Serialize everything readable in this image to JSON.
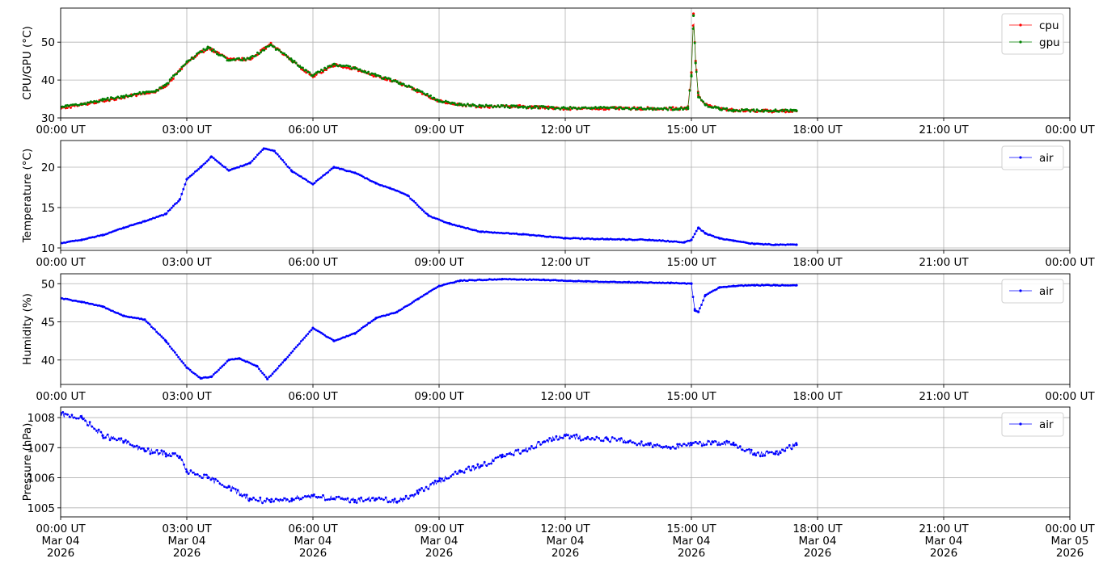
{
  "chart_data": [
    {
      "type": "line",
      "ylabel": "CPU/GPU (°C)",
      "xlabel": "",
      "xlim": [
        "2026-03-04 00:00",
        "2026-03-05 00:00"
      ],
      "ylim": [
        30,
        59
      ],
      "xticks": [
        "00:00 UT",
        "03:00 UT",
        "06:00 UT",
        "09:00 UT",
        "12:00 UT",
        "15:00 UT",
        "18:00 UT",
        "21:00 UT",
        "00:00 UT"
      ],
      "yticks": [
        "30",
        "40",
        "50"
      ],
      "grid": true,
      "legend": "top-right",
      "series": [
        {
          "name": "cpu",
          "color": "#ff0000",
          "x": [
            "00:00",
            "00:30",
            "01:00",
            "01:30",
            "02:00",
            "02:15",
            "02:30",
            "03:00",
            "03:30",
            "04:00",
            "04:30",
            "05:00",
            "05:30",
            "06:00",
            "06:30",
            "07:00",
            "07:30",
            "08:00",
            "08:30",
            "09:00",
            "09:30",
            "10:00",
            "11:00",
            "12:00",
            "13:00",
            "14:00",
            "14:55",
            "15:00",
            "15:03",
            "15:06",
            "15:10",
            "15:20",
            "15:40",
            "16:00",
            "17:00",
            "17:30"
          ],
          "values": [
            32.5,
            33.5,
            34.5,
            35.5,
            36.5,
            36.8,
            38.5,
            44.5,
            48.5,
            45.5,
            45.5,
            49.5,
            45.0,
            41.0,
            44.0,
            43.0,
            41.0,
            39.5,
            37.0,
            34.5,
            33.5,
            33.0,
            33.0,
            32.5,
            32.5,
            32.5,
            32.5,
            42.0,
            57.5,
            45.0,
            36.0,
            33.5,
            32.5,
            32.0,
            31.8,
            31.8
          ]
        },
        {
          "name": "gpu",
          "color": "#008000",
          "x": [
            "00:00",
            "00:30",
            "01:00",
            "01:30",
            "02:00",
            "02:15",
            "02:30",
            "03:00",
            "03:30",
            "04:00",
            "04:30",
            "05:00",
            "05:30",
            "06:00",
            "06:30",
            "07:00",
            "07:30",
            "08:00",
            "08:30",
            "09:00",
            "09:30",
            "10:00",
            "11:00",
            "12:00",
            "13:00",
            "14:00",
            "14:55",
            "15:00",
            "15:03",
            "15:06",
            "15:10",
            "15:20",
            "15:40",
            "16:00",
            "17:00",
            "17:30"
          ],
          "values": [
            32.8,
            33.7,
            34.7,
            35.7,
            36.7,
            37.0,
            38.7,
            44.7,
            48.7,
            45.2,
            45.7,
            49.3,
            45.2,
            41.2,
            44.2,
            43.2,
            41.2,
            39.6,
            37.2,
            34.6,
            33.6,
            33.2,
            32.9,
            32.6,
            32.6,
            32.4,
            32.4,
            41.0,
            57.0,
            44.5,
            35.5,
            33.4,
            32.4,
            32.1,
            31.9,
            31.9
          ]
        }
      ]
    },
    {
      "type": "line",
      "ylabel": "Temperature (°C)",
      "xlabel": "",
      "xlim": [
        "2026-03-04 00:00",
        "2026-03-05 00:00"
      ],
      "ylim": [
        9.7,
        23.3
      ],
      "xticks": [
        "00:00 UT",
        "03:00 UT",
        "06:00 UT",
        "09:00 UT",
        "12:00 UT",
        "15:00 UT",
        "18:00 UT",
        "21:00 UT",
        "00:00 UT"
      ],
      "yticks": [
        "10",
        "15",
        "20"
      ],
      "grid": true,
      "legend": "top-right",
      "series": [
        {
          "name": "air",
          "color": "#0000ff",
          "x": [
            "00:00",
            "00:30",
            "01:00",
            "01:30",
            "02:00",
            "02:30",
            "02:50",
            "03:00",
            "03:20",
            "03:35",
            "04:00",
            "04:30",
            "04:50",
            "05:05",
            "05:30",
            "06:00",
            "06:30",
            "07:00",
            "07:30",
            "07:50",
            "08:15",
            "08:45",
            "09:15",
            "10:00",
            "11:00",
            "12:00",
            "13:00",
            "14:00",
            "14:50",
            "15:00",
            "15:10",
            "15:20",
            "15:40",
            "16:00",
            "16:30",
            "17:00",
            "17:30"
          ],
          "values": [
            10.6,
            11.0,
            11.6,
            12.5,
            13.3,
            14.2,
            16.0,
            18.5,
            20.0,
            21.3,
            19.6,
            20.5,
            22.3,
            22.0,
            19.5,
            17.9,
            20.0,
            19.3,
            18.0,
            17.4,
            16.5,
            14.0,
            13.0,
            12.0,
            11.7,
            11.2,
            11.1,
            11.0,
            10.7,
            11.0,
            12.5,
            11.8,
            11.2,
            10.9,
            10.5,
            10.4,
            10.4
          ]
        }
      ]
    },
    {
      "type": "line",
      "ylabel": "Humidity (%)",
      "xlabel": "",
      "xlim": [
        "2026-03-04 00:00",
        "2026-03-05 00:00"
      ],
      "ylim": [
        36.8,
        51.3
      ],
      "xticks": [
        "00:00 UT",
        "03:00 UT",
        "06:00 UT",
        "09:00 UT",
        "12:00 UT",
        "15:00 UT",
        "18:00 UT",
        "21:00 UT",
        "00:00 UT"
      ],
      "yticks": [
        "40",
        "45",
        "50"
      ],
      "grid": true,
      "legend": "top-right",
      "series": [
        {
          "name": "air",
          "color": "#0000ff",
          "x": [
            "00:00",
            "00:30",
            "01:00",
            "01:30",
            "02:00",
            "02:30",
            "03:00",
            "03:20",
            "03:35",
            "04:00",
            "04:15",
            "04:40",
            "04:55",
            "05:20",
            "06:00",
            "06:30",
            "07:00",
            "07:30",
            "08:00",
            "08:30",
            "09:00",
            "09:30",
            "10:30",
            "11:30",
            "12:30",
            "13:30",
            "14:30",
            "15:00",
            "15:05",
            "15:10",
            "15:20",
            "15:40",
            "16:00",
            "16:30",
            "17:00",
            "17:30"
          ],
          "values": [
            48.1,
            47.6,
            47.0,
            45.8,
            45.3,
            42.5,
            39.0,
            37.6,
            37.8,
            40.0,
            40.2,
            39.2,
            37.5,
            40.0,
            44.2,
            42.5,
            43.5,
            45.5,
            46.3,
            48.0,
            49.7,
            50.4,
            50.6,
            50.5,
            50.3,
            50.2,
            50.1,
            50.0,
            46.5,
            46.3,
            48.5,
            49.5,
            49.7,
            49.8,
            49.8,
            49.8
          ]
        }
      ]
    },
    {
      "type": "scatter",
      "ylabel": "Pressure (hPa)",
      "xlabel": "",
      "xlim": [
        "2026-03-04 00:00",
        "2026-03-05 00:00"
      ],
      "ylim": [
        1004.7,
        1008.35
      ],
      "xticks": [
        "00:00 UT\nMar 04\n2026",
        "03:00 UT\nMar 04\n2026",
        "06:00 UT\nMar 04\n2026",
        "09:00 UT\nMar 04\n2026",
        "12:00 UT\nMar 04\n2026",
        "15:00 UT\nMar 04\n2026",
        "18:00 UT\nMar 04\n2026",
        "21:00 UT\nMar 04\n2026",
        "00:00 UT\nMar 05\n2026"
      ],
      "yticks": [
        "1005",
        "1006",
        "1007",
        "1008"
      ],
      "grid": true,
      "legend": "top-right",
      "series": [
        {
          "name": "air",
          "color": "#0000ff",
          "x": [
            "00:00",
            "00:30",
            "01:00",
            "01:30",
            "02:00",
            "02:30",
            "02:50",
            "03:00",
            "03:30",
            "04:00",
            "04:30",
            "05:00",
            "05:30",
            "06:00",
            "06:30",
            "07:00",
            "07:30",
            "08:00",
            "08:30",
            "09:00",
            "09:30",
            "10:00",
            "10:30",
            "11:00",
            "11:30",
            "12:00",
            "12:30",
            "13:00",
            "13:30",
            "14:00",
            "14:30",
            "15:00",
            "15:30",
            "16:00",
            "16:30",
            "17:00",
            "17:30"
          ],
          "values": [
            1008.1,
            1008.0,
            1007.4,
            1007.2,
            1006.9,
            1006.8,
            1006.7,
            1006.2,
            1006.0,
            1005.7,
            1005.3,
            1005.2,
            1005.3,
            1005.4,
            1005.3,
            1005.25,
            1005.3,
            1005.2,
            1005.5,
            1005.9,
            1006.2,
            1006.4,
            1006.7,
            1006.9,
            1007.2,
            1007.4,
            1007.3,
            1007.3,
            1007.2,
            1007.1,
            1007.0,
            1007.1,
            1007.2,
            1007.1,
            1006.8,
            1006.8,
            1007.1
          ]
        }
      ]
    }
  ]
}
